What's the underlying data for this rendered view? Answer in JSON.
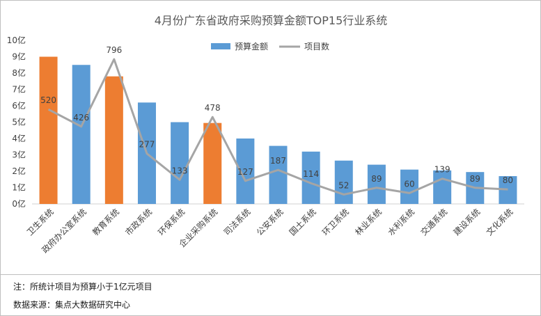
{
  "chart_data": {
    "type": "bar+line",
    "title": "4月份广东省政府采购预算金额TOP15行业系统",
    "categories": [
      "卫生系统",
      "政府办公室系统",
      "教育系统",
      "市政系统",
      "环保系统",
      "企业采购系统",
      "司法系统",
      "公安系统",
      "国土系统",
      "环卫系统",
      "林业系统",
      "水利系统",
      "交通系统",
      "建设系统",
      "文化系统"
    ],
    "series": [
      {
        "name": "预算金额",
        "kind": "bar",
        "axis": "left",
        "values": [
          9.0,
          8.5,
          7.8,
          6.2,
          5.0,
          4.95,
          4.0,
          3.55,
          3.2,
          2.65,
          2.4,
          2.1,
          2.05,
          1.95,
          1.7
        ],
        "colors": [
          "#ED7D31",
          "#5B9BD5",
          "#ED7D31",
          "#5B9BD5",
          "#5B9BD5",
          "#ED7D31",
          "#5B9BD5",
          "#5B9BD5",
          "#5B9BD5",
          "#5B9BD5",
          "#5B9BD5",
          "#5B9BD5",
          "#5B9BD5",
          "#5B9BD5",
          "#5B9BD5"
        ]
      },
      {
        "name": "项目数",
        "kind": "line",
        "axis": "secondary",
        "color": "#A5A5A5",
        "values": [
          520,
          426,
          796,
          277,
          133,
          478,
          127,
          187,
          114,
          52,
          89,
          60,
          139,
          89,
          80
        ],
        "labels": [
          "520",
          "426",
          "796",
          "277",
          "133",
          "478",
          "127",
          "187",
          "114",
          "52",
          "89",
          "60",
          "139",
          "89",
          "80"
        ]
      }
    ],
    "y_axis": {
      "ticks": [
        "0亿",
        "1亿",
        "2亿",
        "3亿",
        "4亿",
        "5亿",
        "6亿",
        "7亿",
        "8亿",
        "9亿",
        "10亿"
      ],
      "ylim": [
        0,
        10
      ]
    },
    "secondary_axis": {
      "ylim": [
        0,
        900
      ],
      "visible": false
    },
    "legend": {
      "position": "top-center",
      "entries": [
        "预算金额",
        "项目数"
      ]
    },
    "gridlines": false
  },
  "footer": {
    "note": "注：所统计项目为预算小于1亿元项目",
    "source": "数据来源：集点大数据研究中心"
  },
  "colors": {
    "bar_blue": "#5B9BD5",
    "bar_orange": "#ED7D31",
    "line_gray": "#A5A5A5"
  }
}
